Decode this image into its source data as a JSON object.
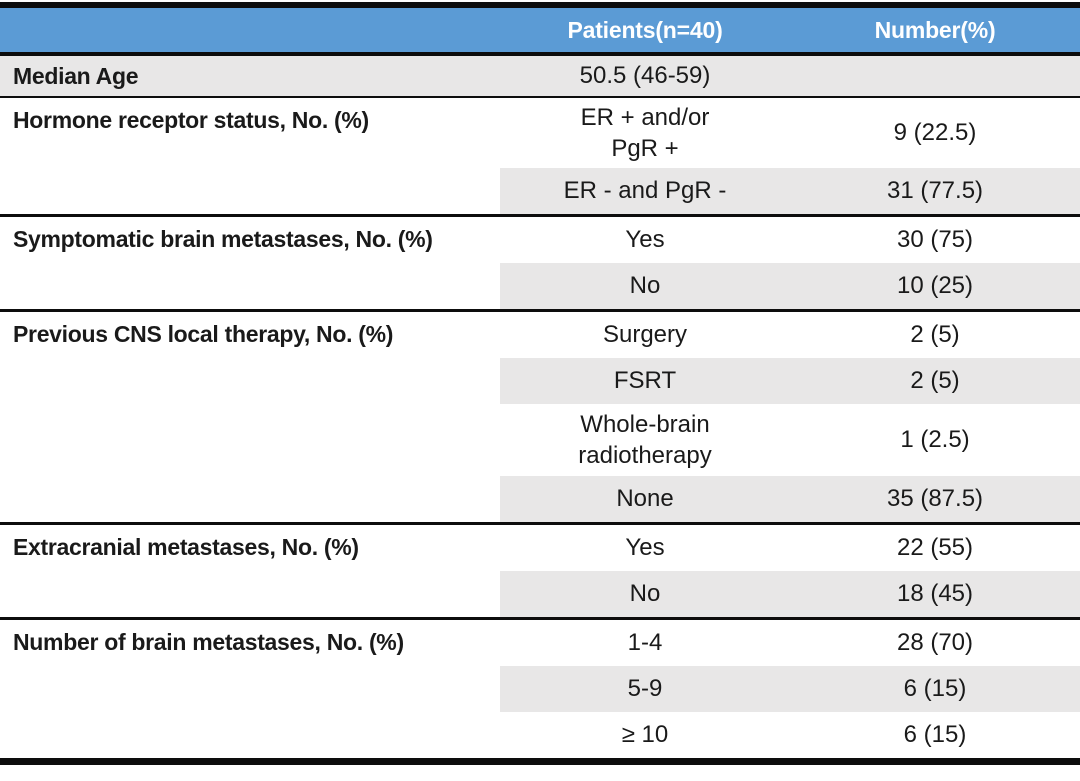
{
  "table": {
    "header": {
      "col1": "",
      "col2": "Patients(n=40)",
      "col3": "Number(%)"
    },
    "colors": {
      "header_bg": "#5b9bd5",
      "header_text": "#ffffff",
      "band_bg": "#e8e7e7",
      "rule_black": "#0d0d0d",
      "body_text": "#1a1a1a"
    },
    "sections": [
      {
        "label": "Median Age",
        "rows": [
          {
            "patients": "50.5 (46-59)",
            "number": ""
          }
        ]
      },
      {
        "label": "Hormone receptor status, No. (%)",
        "rows": [
          {
            "patients": "ER + and/or\nPgR +",
            "number": "9 (22.5)"
          },
          {
            "patients": "ER - and PgR -",
            "number": "31 (77.5)"
          }
        ]
      },
      {
        "label": "Symptomatic brain metastases, No. (%)",
        "rows": [
          {
            "patients": "Yes",
            "number": "30 (75)"
          },
          {
            "patients": "No",
            "number": "10 (25)"
          }
        ]
      },
      {
        "label": "Previous CNS local therapy, No. (%)",
        "rows": [
          {
            "patients": "Surgery",
            "number": "2 (5)"
          },
          {
            "patients": "FSRT",
            "number": "2 (5)"
          },
          {
            "patients": "Whole-brain\nradiotherapy",
            "number": "1 (2.5)"
          },
          {
            "patients": "None",
            "number": "35 (87.5)"
          }
        ]
      },
      {
        "label": "Extracranial metastases, No. (%)",
        "rows": [
          {
            "patients": "Yes",
            "number": "22 (55)"
          },
          {
            "patients": "No",
            "number": "18 (45)"
          }
        ]
      },
      {
        "label": "Number of brain metastases, No. (%)",
        "rows": [
          {
            "patients": "1-4",
            "number": "28 (70)"
          },
          {
            "patients": "5-9",
            "number": "6 (15)"
          },
          {
            "patients": "≥ 10",
            "number": "6 (15)"
          }
        ]
      }
    ]
  }
}
